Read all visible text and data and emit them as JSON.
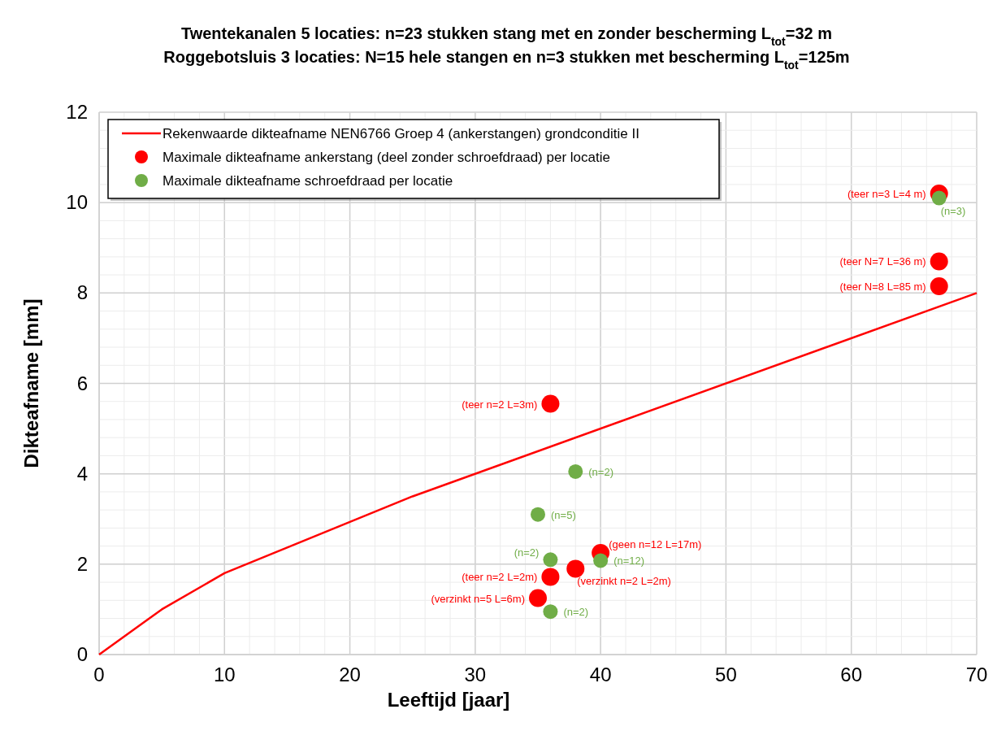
{
  "chart_data": {
    "type": "scatter",
    "title": "Twentekanalen 5 locaties: n=23 stukken stang met en zonder bescherming L$_{tot}$=32 m",
    "subtitle": "Roggebotsluis 3 locaties: N=15 hele stangen en n=3 stukken met bescherming L$_{tot}$=125m",
    "xlabel": "Leeftijd [jaar]",
    "ylabel": "Dikteafname [mm]",
    "xlim": [
      0,
      70
    ],
    "xticks": [
      0,
      10,
      20,
      30,
      40,
      50,
      60,
      70
    ],
    "ylim": [
      0,
      12
    ],
    "yticks": [
      0,
      2,
      4,
      6,
      8,
      10,
      12
    ],
    "grid": true,
    "legend": "top left",
    "series": [
      {
        "name": "Rekenwaarde dikteafname NEN6766 Groep 4 (ankerstangen) grondconditie II",
        "type": "line",
        "color": "#ff0000",
        "marker": "none",
        "line_style": "solid",
        "x": [
          0,
          5,
          10,
          25,
          70
        ],
        "values": [
          0,
          1,
          1.8,
          3.5,
          8
        ]
      },
      {
        "name": "Maximale dikteafname ankerstang (deel zonder schroefdraad) per locatie",
        "color": "#ff0000",
        "marker": "circle",
        "x": [
          67,
          67,
          67,
          36,
          40,
          38,
          36,
          35
        ],
        "values": [
          10.2,
          8.7,
          8.15,
          5.55,
          2.25,
          1.9,
          1.72,
          1.25
        ]
      },
      {
        "name": "Maximale dikteafname schroefdraad per locatie",
        "color": "#70ad47",
        "marker": "circle",
        "x": [
          67,
          38,
          35,
          36,
          40,
          36
        ],
        "values": [
          10.1,
          4.05,
          3.1,
          2.1,
          2.08,
          0.95
        ]
      }
    ],
    "annotations": [
      {
        "text": "(teer n=3 L=4 m)",
        "x": 67,
        "y": 10.2
      },
      {
        "text": "(teer N=7 L=36 m)",
        "x": 67,
        "y": 8.7
      },
      {
        "text": "(teer N=8 L=85 m)",
        "x": 67,
        "y": 8.15
      },
      {
        "text": "(teer n=2 L=3m)",
        "x": 36,
        "y": 5.55
      },
      {
        "text": "(geen n=12 L=17m)",
        "x": 40,
        "y": 2.25
      },
      {
        "text": "(verzinkt n=2 L=2m)",
        "x": 38,
        "y": 1.9
      },
      {
        "text": "(teer n=2 L=2m)",
        "x": 36,
        "y": 1.72
      },
      {
        "text": "(verzinkt n=5 L=6m)",
        "x": 35,
        "y": 1.25
      },
      {
        "text": "(n=3)",
        "x": 67,
        "y": 10.1
      },
      {
        "text": "(n=2)",
        "x": 38,
        "y": 4.05
      },
      {
        "text": "(n=5)",
        "x": 35,
        "y": 3.1
      },
      {
        "text": "(n=2)",
        "x": 36,
        "y": 2.1
      },
      {
        "text": "(n=12)",
        "x": 40,
        "y": 2.08
      },
      {
        "text": "(n=2)",
        "x": 36,
        "y": 0.95
      }
    ]
  }
}
